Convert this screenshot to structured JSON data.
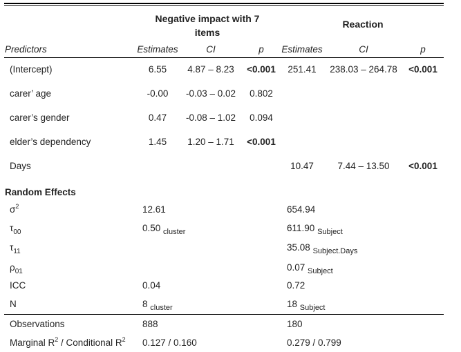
{
  "models": [
    {
      "title": "Negative impact with 7 items"
    },
    {
      "title": "Reaction"
    }
  ],
  "columns": {
    "predictors": "Predictors",
    "estimates": "Estimates",
    "ci": "CI",
    "p": "p"
  },
  "rows": [
    {
      "label": "(Intercept)",
      "m1": {
        "est": "6.55",
        "ci": "4.87 – 8.23",
        "p": "<0.001",
        "p_bold": true
      },
      "m2": {
        "est": "251.41",
        "ci": "238.03 – 264.78",
        "p": "<0.001",
        "p_bold": true
      }
    },
    {
      "label": "carer’ age",
      "m1": {
        "est": "-0.00",
        "ci": "-0.03 – 0.02",
        "p": "0.802",
        "p_bold": false
      },
      "m2": {
        "est": "",
        "ci": "",
        "p": "",
        "p_bold": false
      }
    },
    {
      "label": "carer’s gender",
      "m1": {
        "est": "0.47",
        "ci": "-0.08 – 1.02",
        "p": "0.094",
        "p_bold": false
      },
      "m2": {
        "est": "",
        "ci": "",
        "p": "",
        "p_bold": false
      }
    },
    {
      "label": "elder’s dependency",
      "m1": {
        "est": "1.45",
        "ci": "1.20 – 1.71",
        "p": "<0.001",
        "p_bold": true
      },
      "m2": {
        "est": "",
        "ci": "",
        "p": "",
        "p_bold": false
      }
    },
    {
      "label": "Days",
      "m1": {
        "est": "",
        "ci": "",
        "p": "",
        "p_bold": false
      },
      "m2": {
        "est": "10.47",
        "ci": "7.44 – 13.50",
        "p": "<0.001",
        "p_bold": true
      }
    }
  ],
  "random_effects": {
    "heading": "Random Effects",
    "rows": [
      {
        "sym": "σ",
        "sup": "2",
        "sub": "",
        "m1": "12.61",
        "m1_sub": "",
        "m2": "654.94",
        "m2_sub": ""
      },
      {
        "sym": "τ",
        "sup": "",
        "sub": "00",
        "m1": "0.50",
        "m1_sub": "cluster",
        "m2": "611.90",
        "m2_sub": "Subject"
      },
      {
        "sym": "τ",
        "sup": "",
        "sub": "11",
        "m1": "",
        "m1_sub": "",
        "m2": "35.08",
        "m2_sub": "Subject.Days"
      },
      {
        "sym": "ρ",
        "sup": "",
        "sub": "01",
        "m1": "",
        "m1_sub": "",
        "m2": "0.07",
        "m2_sub": "Subject"
      },
      {
        "sym": "ICC",
        "sup": "",
        "sub": "",
        "m1": "0.04",
        "m1_sub": "",
        "m2": "0.72",
        "m2_sub": ""
      },
      {
        "sym": "N",
        "sup": "",
        "sub": "",
        "m1": "8",
        "m1_sub": "cluster",
        "m2": "18",
        "m2_sub": "Subject"
      }
    ]
  },
  "footer": [
    {
      "label": "Observations",
      "label_sup": "",
      "m1": "888",
      "m2": "180"
    },
    {
      "label": "Marginal R",
      "label_sup": "2",
      "label2": " / Conditional R",
      "label2_sup": "2",
      "m1": "0.127 / 0.160",
      "m2": "0.279 / 0.799"
    }
  ]
}
